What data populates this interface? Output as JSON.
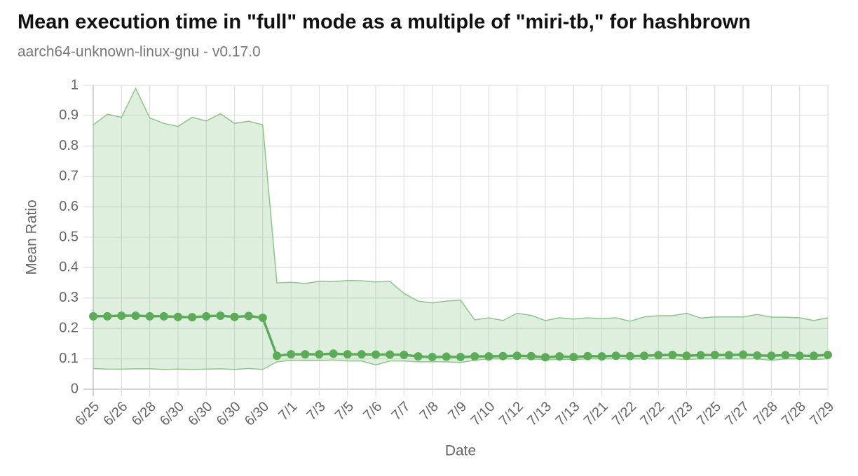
{
  "chart_data": {
    "type": "line",
    "title": "Mean execution time in \"full\" mode as a multiple of \"miri-tb,\" for hashbrown",
    "subtitle": "aarch64-unknown-linux-gnu - v0.17.0",
    "x_label": "Date",
    "y_label": "Mean Ratio",
    "categories": [
      "6/25",
      null,
      "6/26",
      null,
      "6/28",
      null,
      "6/30",
      null,
      "6/30",
      null,
      "6/30",
      null,
      "6/30",
      null,
      "7/1",
      null,
      "7/3",
      null,
      "7/5",
      null,
      "7/6",
      null,
      "7/7",
      null,
      "7/8",
      null,
      "7/9",
      null,
      "7/10",
      null,
      "7/12",
      null,
      "7/13",
      null,
      "7/13",
      null,
      "7/21",
      null,
      "7/22",
      null,
      "7/22",
      null,
      "7/23",
      null,
      "7/25",
      null,
      "7/27",
      null,
      "7/28",
      null,
      "7/28",
      null,
      "7/29"
    ],
    "series": [
      {
        "color": "#5aac56",
        "values": [
          0.24,
          0.24,
          0.242,
          0.242,
          0.24,
          0.24,
          0.238,
          0.237,
          0.24,
          0.242,
          0.238,
          0.241,
          0.235,
          0.11,
          0.115,
          0.115,
          0.115,
          0.117,
          0.115,
          0.115,
          0.114,
          0.114,
          0.113,
          0.108,
          0.106,
          0.107,
          0.106,
          0.108,
          0.108,
          0.109,
          0.11,
          0.109,
          0.105,
          0.108,
          0.106,
          0.109,
          0.108,
          0.11,
          0.109,
          0.11,
          0.112,
          0.113,
          0.11,
          0.112,
          0.113,
          0.112,
          0.114,
          0.111,
          0.11,
          0.112,
          0.11,
          0.11,
          0.113
        ]
      }
    ],
    "band": {
      "color": "#8cc788",
      "upper": [
        0.87,
        0.905,
        0.895,
        0.99,
        0.893,
        0.875,
        0.865,
        0.895,
        0.883,
        0.907,
        0.875,
        0.882,
        0.87,
        0.35,
        0.352,
        0.348,
        0.355,
        0.354,
        0.358,
        0.357,
        0.353,
        0.355,
        0.315,
        0.29,
        0.284,
        0.29,
        0.293,
        0.228,
        0.235,
        0.226,
        0.25,
        0.243,
        0.226,
        0.235,
        0.231,
        0.235,
        0.232,
        0.235,
        0.224,
        0.238,
        0.242,
        0.242,
        0.25,
        0.234,
        0.238,
        0.238,
        0.238,
        0.246,
        0.237,
        0.237,
        0.235,
        0.226,
        0.235
      ],
      "lower": [
        0.068,
        0.066,
        0.066,
        0.067,
        0.067,
        0.065,
        0.066,
        0.065,
        0.066,
        0.067,
        0.065,
        0.068,
        0.065,
        0.09,
        0.095,
        0.094,
        0.094,
        0.096,
        0.093,
        0.093,
        0.08,
        0.093,
        0.093,
        0.09,
        0.09,
        0.09,
        0.088,
        0.095,
        0.1,
        0.1,
        0.1,
        0.1,
        0.097,
        0.098,
        0.098,
        0.1,
        0.1,
        0.1,
        0.1,
        0.1,
        0.1,
        0.1,
        0.098,
        0.1,
        0.1,
        0.1,
        0.1,
        0.1,
        0.095,
        0.1,
        0.1,
        0.098,
        0.1
      ]
    },
    "ylim": [
      0,
      1
    ],
    "yticks": [
      0,
      0.1,
      0.2,
      0.3,
      0.4,
      0.5,
      0.6,
      0.7,
      0.8,
      0.9,
      1
    ],
    "grid": true
  }
}
